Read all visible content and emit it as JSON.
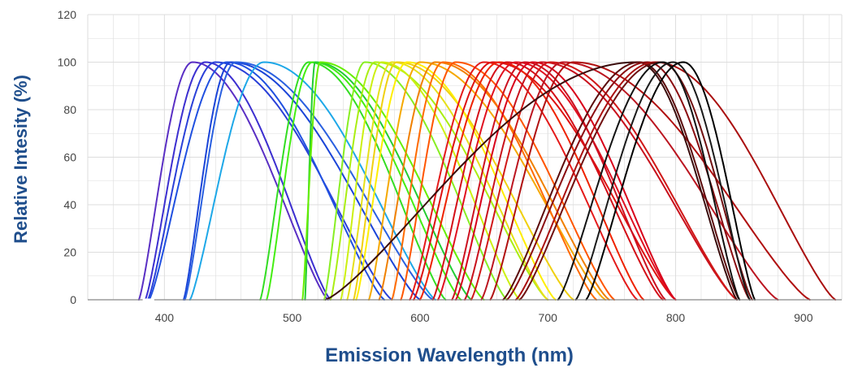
{
  "chart_data": {
    "type": "line",
    "title": "",
    "xlabel": "Emission Wavelength (nm)",
    "ylabel": "Relative Intesity (%)",
    "xlim": [
      340,
      930
    ],
    "ylim": [
      0,
      120
    ],
    "xticks": [
      400,
      500,
      600,
      700,
      800,
      900
    ],
    "yticks": [
      0,
      20,
      40,
      60,
      80,
      100,
      120
    ],
    "grid": true,
    "legend": "none",
    "colors": {
      "axis_title": "#1f4e8c",
      "tick_label": "#444444",
      "grid": "#dddddd",
      "axis_line": "#888888"
    },
    "series": [
      {
        "color": "#5a2fc4",
        "start": 380,
        "peak": 422,
        "end": 528
      },
      {
        "color": "#3c2fd0",
        "start": 385,
        "peak": 432,
        "end": 530
      },
      {
        "color": "#2a40d8",
        "start": 387,
        "peak": 440,
        "end": 578
      },
      {
        "color": "#2050e0",
        "start": 388,
        "peak": 449,
        "end": 572
      },
      {
        "color": "#1a44d8",
        "start": 415,
        "peak": 452,
        "end": 600
      },
      {
        "color": "#2a60e0",
        "start": 416,
        "peak": 456,
        "end": 610
      },
      {
        "color": "#1ea8e8",
        "start": 420,
        "peak": 478,
        "end": 612
      },
      {
        "color": "#33dd22",
        "start": 475,
        "peak": 513,
        "end": 620
      },
      {
        "color": "#44ee11",
        "start": 480,
        "peak": 516,
        "end": 632
      },
      {
        "color": "#22cc33",
        "start": 510,
        "peak": 518,
        "end": 640
      },
      {
        "color": "#66ee00",
        "start": 508,
        "peak": 522,
        "end": 650
      },
      {
        "color": "#88ee22",
        "start": 525,
        "peak": 557,
        "end": 668
      },
      {
        "color": "#aaee11",
        "start": 530,
        "peak": 565,
        "end": 700
      },
      {
        "color": "#ccf011",
        "start": 538,
        "peak": 570,
        "end": 678
      },
      {
        "color": "#e6e01a",
        "start": 543,
        "peak": 578,
        "end": 700
      },
      {
        "color": "#f0d010",
        "start": 548,
        "peak": 582,
        "end": 720
      },
      {
        "color": "#ffee00",
        "start": 550,
        "peak": 590,
        "end": 706
      },
      {
        "color": "#f5a800",
        "start": 560,
        "peak": 600,
        "end": 745
      },
      {
        "color": "#f08000",
        "start": 568,
        "peak": 612,
        "end": 748
      },
      {
        "color": "#ff6a00",
        "start": 578,
        "peak": 618,
        "end": 738
      },
      {
        "color": "#ff5500",
        "start": 585,
        "peak": 628,
        "end": 752
      },
      {
        "color": "#e41a1a",
        "start": 592,
        "peak": 650,
        "end": 770
      },
      {
        "color": "#dd1111",
        "start": 595,
        "peak": 657,
        "end": 800
      },
      {
        "color": "#ee2200",
        "start": 600,
        "peak": 662,
        "end": 775
      },
      {
        "color": "#d40f18",
        "start": 610,
        "peak": 668,
        "end": 790
      },
      {
        "color": "#e01020",
        "start": 614,
        "peak": 675,
        "end": 800
      },
      {
        "color": "#cc1020",
        "start": 625,
        "peak": 682,
        "end": 792
      },
      {
        "color": "#d8001a",
        "start": 628,
        "peak": 688,
        "end": 800
      },
      {
        "color": "#c8101c",
        "start": 635,
        "peak": 695,
        "end": 848
      },
      {
        "color": "#d01818",
        "start": 640,
        "peak": 702,
        "end": 848
      },
      {
        "color": "#bb1520",
        "start": 648,
        "peak": 712,
        "end": 880
      },
      {
        "color": "#b01010",
        "start": 655,
        "peak": 720,
        "end": 905
      },
      {
        "color": "#3a0c0c",
        "start": 526,
        "peak": 770,
        "end": 848
      },
      {
        "color": "#5a0a0a",
        "start": 665,
        "peak": 772,
        "end": 850
      },
      {
        "color": "#8a0c10",
        "start": 668,
        "peak": 778,
        "end": 858
      },
      {
        "color": "#aa1010",
        "start": 675,
        "peak": 784,
        "end": 925
      },
      {
        "color": "#701010",
        "start": 678,
        "peak": 788,
        "end": 860
      },
      {
        "color": "#111111",
        "start": 708,
        "peak": 790,
        "end": 850
      },
      {
        "color": "#1a1a1a",
        "start": 722,
        "peak": 798,
        "end": 858
      },
      {
        "color": "#000000",
        "start": 730,
        "peak": 806,
        "end": 862
      }
    ]
  }
}
